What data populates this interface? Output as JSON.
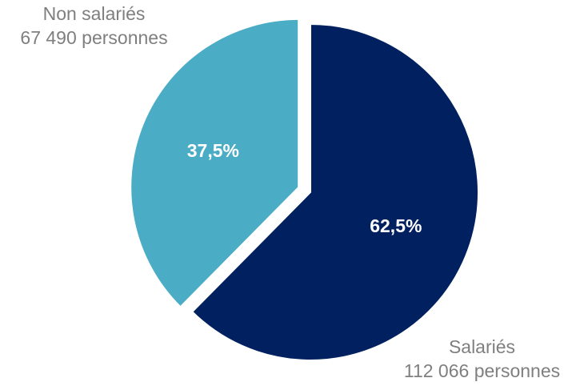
{
  "chart_data": {
    "type": "pie",
    "title": "",
    "slices": [
      {
        "name": "Non salariés",
        "count_label": "67 490 personnes",
        "value": 67490,
        "percent": 37.5,
        "percent_label": "37,5%",
        "color": "#4bacc6",
        "exploded": true
      },
      {
        "name": "Salariés",
        "count_label": "112 066 personnes",
        "value": 112066,
        "percent": 62.5,
        "percent_label": "62,5%",
        "color": "#002060",
        "exploded": false
      }
    ]
  }
}
